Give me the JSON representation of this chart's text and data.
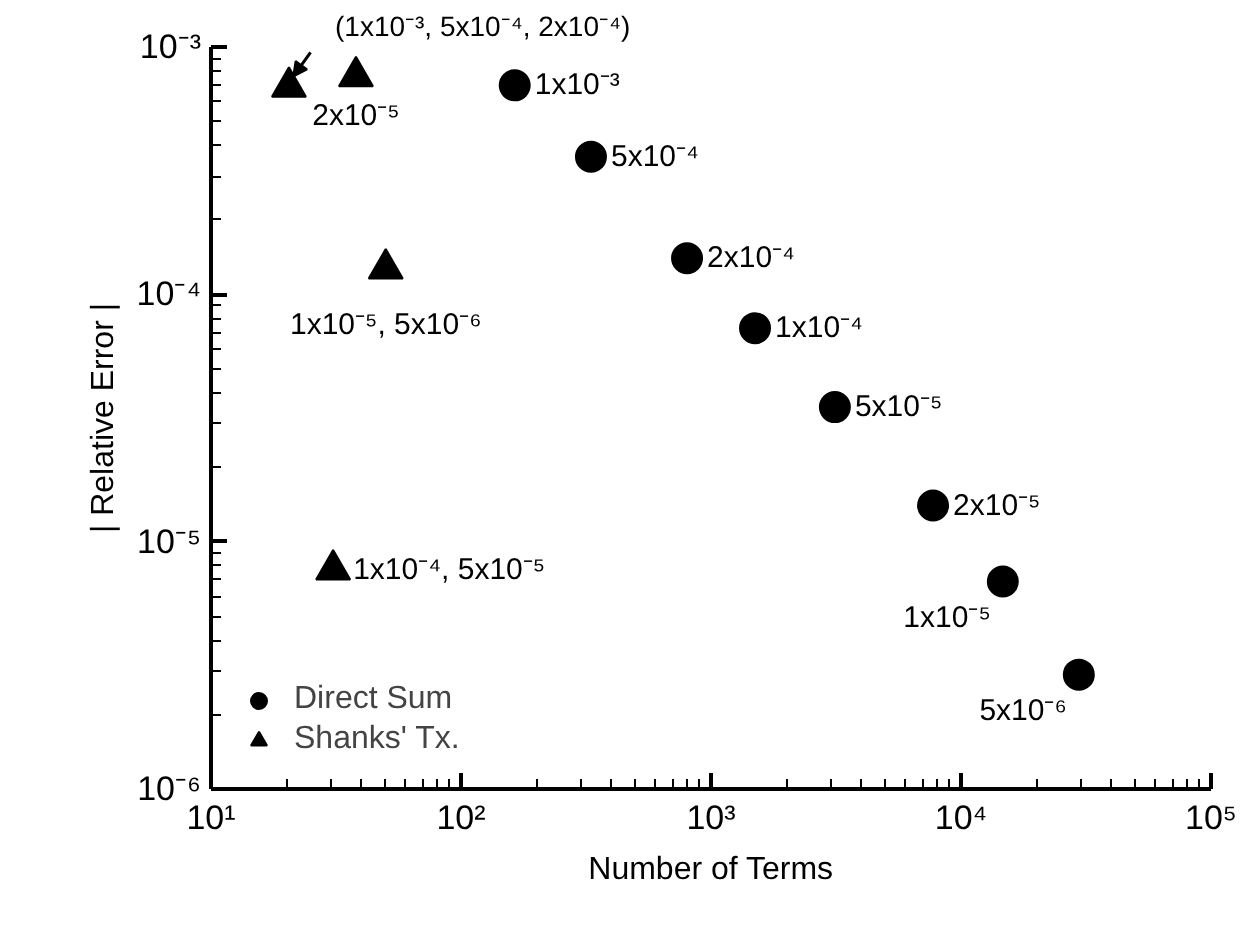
{
  "chart_data": {
    "type": "scatter",
    "xlabel": "Number of Terms",
    "ylabel": "| Relative Error |",
    "log": "xy",
    "grid": false,
    "legend": "bottom left",
    "xlim": [
      10,
      100000
    ],
    "ylim": [
      1e-06,
      0.001
    ],
    "xticks": [
      {
        "value": 10,
        "label": "10¹"
      },
      {
        "value": 100,
        "label": "10²"
      },
      {
        "value": 1000,
        "label": "10³"
      },
      {
        "value": 10000,
        "label": "10⁴"
      },
      {
        "value": 100000,
        "label": "10⁵"
      }
    ],
    "yticks": [
      {
        "value": 1e-06,
        "label": "10⁻⁶"
      },
      {
        "value": 1e-05,
        "label": "10⁻⁵"
      },
      {
        "value": 0.0001,
        "label": "10⁻⁴"
      },
      {
        "value": 0.001,
        "label": "10⁻³"
      }
    ],
    "series": [
      {
        "name": "Direct Sum",
        "color": "#000000",
        "marker": "circle",
        "x": [
          164,
          331,
          802,
          1500,
          3130,
          7730,
          14700,
          29600
        ],
        "values": [
          0.0007,
          0.00036,
          0.00014,
          7.3e-05,
          3.5e-05,
          1.4e-05,
          6.9e-06,
          2.9e-06
        ]
      },
      {
        "name": "Shanks' Tx.",
        "color": "#000000",
        "marker": "triangle",
        "x": [
          20.5,
          38,
          50,
          30.8
        ],
        "values": [
          0.00069,
          0.00076,
          0.000127,
          7.7e-06
        ]
      }
    ],
    "annotations": [
      {
        "text": "1x10⁻³",
        "x": 164,
        "y": 0.0007
      },
      {
        "text": "5x10⁻⁴",
        "x": 331,
        "y": 0.00036
      },
      {
        "text": "2x10⁻⁴",
        "x": 802,
        "y": 0.00014
      },
      {
        "text": "1x10⁻⁴",
        "x": 1500,
        "y": 7.3e-05
      },
      {
        "text": "5x10⁻⁵",
        "x": 3130,
        "y": 3.5e-05
      },
      {
        "text": "2x10⁻⁵",
        "x": 7730,
        "y": 1.4e-05
      },
      {
        "text": "1x10⁻⁵",
        "x": 14700,
        "y": 6.9e-06
      },
      {
        "text": "5x10⁻⁶",
        "x": 29600,
        "y": 2.9e-06
      },
      {
        "text": "(1x10⁻³, 5x10⁻⁴, 2x10⁻⁴)",
        "x": 20.5,
        "y": 0.00069
      },
      {
        "text": "2x10⁻⁵",
        "x": 38,
        "y": 0.00076
      },
      {
        "text": "1x10⁻⁵, 5x10⁻⁶",
        "x": 50,
        "y": 0.000127
      },
      {
        "text": "1x10⁻⁴, 5x10⁻⁵",
        "x": 30.8,
        "y": 7.7e-06
      }
    ]
  }
}
